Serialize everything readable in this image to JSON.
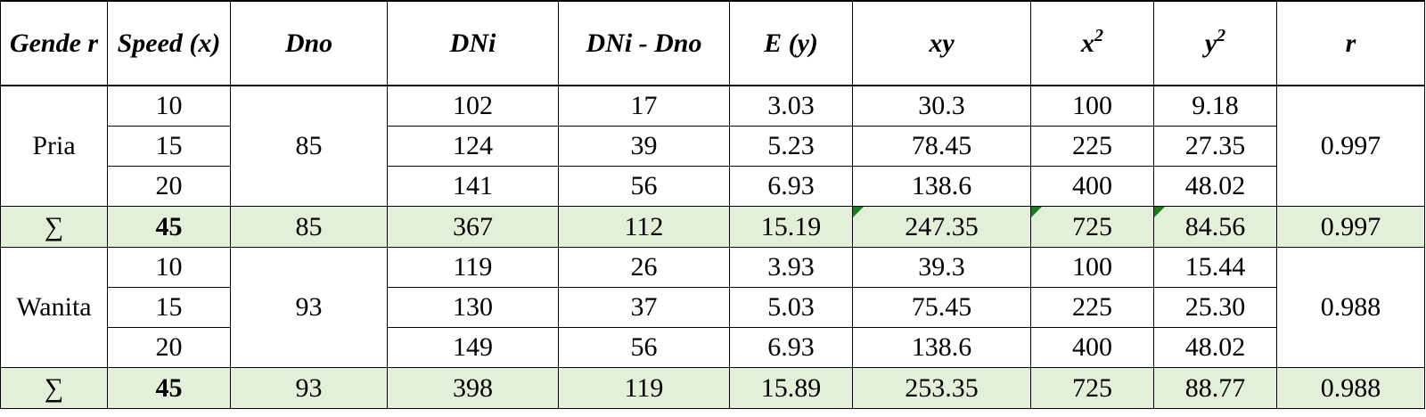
{
  "headers": {
    "gender": "Gende r",
    "speed": "Speed (x)",
    "dno": "Dno",
    "dni": "DNi",
    "dni_dno": "DNi - Dno",
    "e": "E (y)",
    "xy": "xy",
    "x2_base": "x",
    "x2_exp": "2",
    "y2_base": "y",
    "y2_exp": "2",
    "r": "r"
  },
  "groups": [
    {
      "gender": "Pria",
      "dno": "85",
      "r": "0.997",
      "rows": [
        {
          "speed": "10",
          "dni": "102",
          "diff": "17",
          "e": "3.03",
          "xy": "30.3",
          "x2": "100",
          "y2": "9.18"
        },
        {
          "speed": "15",
          "dni": "124",
          "diff": "39",
          "e": "5.23",
          "xy": "78.45",
          "x2": "225",
          "y2": "27.35"
        },
        {
          "speed": "20",
          "dni": "141",
          "diff": "56",
          "e": "6.93",
          "xy": "138.6",
          "x2": "400",
          "y2": "48.02"
        }
      ],
      "sum": {
        "symbol": "∑",
        "speed": "45",
        "dno": "85",
        "dni": "367",
        "diff": "112",
        "e": "15.19",
        "xy": "247.35",
        "x2": "725",
        "y2": "84.56",
        "r": "0.997"
      }
    },
    {
      "gender": "Wanita",
      "dno": "93",
      "r": "0.988",
      "rows": [
        {
          "speed": "10",
          "dni": "119",
          "diff": "26",
          "e": "3.93",
          "xy": "39.3",
          "x2": "100",
          "y2": "15.44"
        },
        {
          "speed": "15",
          "dni": "130",
          "diff": "37",
          "e": "5.03",
          "xy": "75.45",
          "x2": "225",
          "y2": "25.30"
        },
        {
          "speed": "20",
          "dni": "149",
          "diff": "56",
          "e": "6.93",
          "xy": "138.6",
          "x2": "400",
          "y2": "48.02"
        }
      ],
      "sum": {
        "symbol": "∑",
        "speed": "45",
        "dno": "93",
        "dni": "398",
        "diff": "119",
        "e": "15.89",
        "xy": "253.35",
        "x2": "725",
        "y2": "88.77",
        "r": "0.988"
      }
    }
  ],
  "colors": {
    "sum_row_bg": "#e3efd9",
    "cell_marker": "#1f7a1f"
  }
}
